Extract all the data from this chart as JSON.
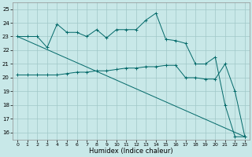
{
  "xlabel": "Humidex (Indice chaleur)",
  "xlim": [
    -0.5,
    23.5
  ],
  "ylim": [
    15.5,
    25.5
  ],
  "yticks": [
    16,
    17,
    18,
    19,
    20,
    21,
    22,
    23,
    24,
    25
  ],
  "xticks": [
    0,
    1,
    2,
    3,
    4,
    5,
    6,
    7,
    8,
    9,
    10,
    11,
    12,
    13,
    14,
    15,
    16,
    17,
    18,
    19,
    20,
    21,
    22,
    23
  ],
  "bg_color": "#c8e8e8",
  "grid_color": "#a0c8c8",
  "line_color": "#006868",
  "line1_x": [
    0,
    1,
    2,
    3,
    4,
    5,
    6,
    7,
    8,
    9,
    10,
    11,
    12,
    13,
    14,
    15,
    16,
    17,
    18,
    19,
    20,
    21,
    22,
    23
  ],
  "line1_y": [
    23.0,
    23.0,
    23.0,
    22.2,
    23.9,
    23.3,
    23.3,
    23.0,
    23.5,
    22.9,
    23.5,
    23.5,
    23.5,
    24.2,
    24.7,
    22.8,
    22.7,
    22.5,
    21.0,
    21.0,
    21.5,
    18.0,
    15.7,
    15.7
  ],
  "line2_x": [
    0,
    23
  ],
  "line2_y": [
    23.0,
    15.7
  ],
  "line3_x": [
    0,
    1,
    2,
    3,
    4,
    5,
    6,
    7,
    8,
    9,
    10,
    11,
    12,
    13,
    14,
    15,
    16,
    17,
    18,
    19,
    20,
    21,
    22,
    23
  ],
  "line3_y": [
    20.2,
    20.2,
    20.2,
    20.2,
    20.2,
    20.3,
    20.4,
    20.4,
    20.5,
    20.5,
    20.6,
    20.7,
    20.7,
    20.8,
    20.8,
    20.9,
    20.9,
    20.0,
    20.0,
    19.9,
    19.9,
    21.0,
    19.0,
    15.7
  ]
}
